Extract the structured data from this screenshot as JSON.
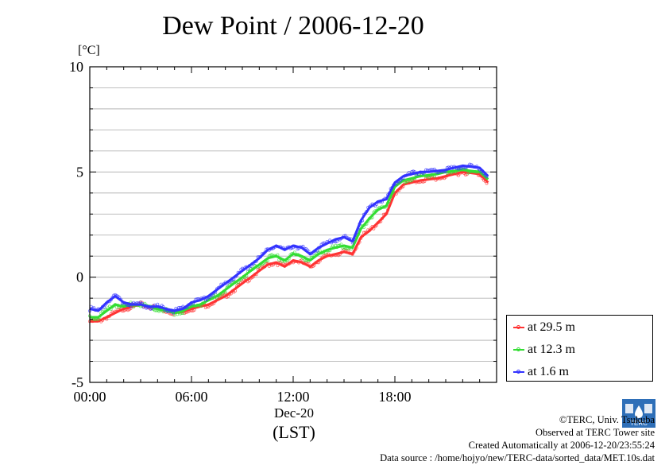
{
  "title": "Dew Point / 2006-12-20",
  "unit": "[°C]",
  "date_label": "Dec-20",
  "lst_label": "(LST)",
  "legend": [
    {
      "label": "at 29.5 m",
      "color": "#ff3333"
    },
    {
      "label": "at 12.3 m",
      "color": "#33dd33"
    },
    {
      "label": "at 1.6 m",
      "color": "#3333ff"
    }
  ],
  "credits": {
    "copyright": "©TERC, Univ. Tsukuba",
    "observed": "Observed at TERC Tower site",
    "created": "Created Automatically at 2006-12-20/23:55:24",
    "source": "Data source : /home/hojyo/new/TERC-data/sorted_data/MET.10s.dat"
  },
  "logo_text": "TERC",
  "chart_data": {
    "type": "line",
    "title": "Dew Point / 2006-12-20",
    "ylabel": "[°C]",
    "xlabel": "(LST)",
    "ylim": [
      -5,
      10
    ],
    "xlim": [
      0,
      24
    ],
    "y_ticks": [
      -5,
      0,
      5,
      10
    ],
    "y_tick_labels": [
      "-5",
      "0",
      "5",
      "10"
    ],
    "x_ticks": [
      0,
      6,
      12,
      18
    ],
    "x_tick_labels": [
      "00:00",
      "06:00",
      "12:00",
      "18:00"
    ],
    "grid": "horizontal",
    "legend_position": "right",
    "x": [
      0,
      0.5,
      1,
      1.5,
      2,
      2.5,
      3,
      3.5,
      4,
      4.5,
      5,
      5.5,
      6,
      6.5,
      7,
      7.5,
      8,
      8.5,
      9,
      9.5,
      10,
      10.5,
      11,
      11.5,
      12,
      12.5,
      13,
      13.5,
      14,
      14.5,
      15,
      15.5,
      16,
      16.5,
      17,
      17.5,
      18,
      18.5,
      19,
      19.5,
      20,
      20.5,
      21,
      21.5,
      22,
      22.5,
      23,
      23.5
    ],
    "series": [
      {
        "name": "at 29.5 m",
        "color": "#ff3333",
        "values": [
          -2.1,
          -2.1,
          -1.9,
          -1.7,
          -1.5,
          -1.4,
          -1.3,
          -1.4,
          -1.5,
          -1.6,
          -1.7,
          -1.65,
          -1.5,
          -1.4,
          -1.3,
          -1.1,
          -0.9,
          -0.6,
          -0.3,
          0.0,
          0.3,
          0.6,
          0.7,
          0.5,
          0.8,
          0.7,
          0.5,
          0.8,
          1.0,
          1.1,
          1.2,
          1.1,
          1.9,
          2.2,
          2.6,
          3.0,
          4.0,
          4.4,
          4.5,
          4.6,
          4.65,
          4.7,
          4.8,
          4.9,
          5.0,
          4.95,
          4.9,
          4.5
        ]
      },
      {
        "name": "at 12.3 m",
        "color": "#33dd33",
        "values": [
          -1.9,
          -1.9,
          -1.6,
          -1.3,
          -1.4,
          -1.3,
          -1.3,
          -1.4,
          -1.5,
          -1.6,
          -1.7,
          -1.6,
          -1.4,
          -1.3,
          -1.1,
          -0.9,
          -0.6,
          -0.3,
          0.0,
          0.3,
          0.6,
          0.9,
          1.0,
          0.8,
          1.1,
          1.0,
          0.8,
          1.1,
          1.3,
          1.4,
          1.5,
          1.4,
          2.3,
          2.8,
          3.2,
          3.4,
          4.3,
          4.6,
          4.7,
          4.8,
          4.85,
          4.9,
          5.0,
          5.05,
          5.1,
          5.05,
          5.0,
          4.65
        ]
      },
      {
        "name": "at 1.6 m",
        "color": "#3333ff",
        "values": [
          -1.5,
          -1.6,
          -1.2,
          -0.9,
          -1.2,
          -1.3,
          -1.3,
          -1.4,
          -1.4,
          -1.5,
          -1.6,
          -1.5,
          -1.2,
          -1.1,
          -0.9,
          -0.6,
          -0.3,
          0.0,
          0.3,
          0.6,
          0.9,
          1.3,
          1.5,
          1.3,
          1.5,
          1.4,
          1.1,
          1.4,
          1.6,
          1.8,
          1.9,
          1.7,
          2.7,
          3.3,
          3.6,
          3.7,
          4.5,
          4.8,
          4.9,
          5.0,
          5.0,
          5.05,
          5.1,
          5.2,
          5.3,
          5.25,
          5.2,
          4.8
        ]
      }
    ]
  }
}
